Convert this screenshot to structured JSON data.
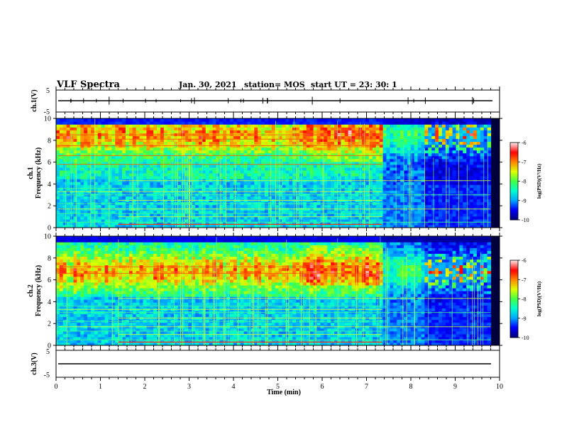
{
  "header": {
    "title": "VLF Spectra",
    "date": "Jan. 30, 2021",
    "station": "station= MOS",
    "start": "start  UT =   23: 30: 1"
  },
  "chart_data": {
    "type": "heatmap",
    "x_axis": {
      "label": "Time  (min)",
      "range": [
        0,
        10
      ],
      "ticks": [
        "0",
        "1",
        "2",
        "3",
        "4",
        "5",
        "6",
        "7",
        "8",
        "9",
        "10"
      ]
    },
    "panels": [
      {
        "id": "ch1_waveform",
        "type": "line",
        "ylabel": "ch.1(V)",
        "ylim": [
          -5,
          5
        ],
        "yticks": [
          "5",
          "-5"
        ],
        "baseline_value": 0
      },
      {
        "id": "ch1_spectrogram",
        "type": "heatmap",
        "ylabel_channel": "ch.1",
        "ylabel": "Frequency  (kHz)",
        "ylim": [
          0,
          10
        ],
        "yticks": [
          "0",
          "2",
          "4",
          "6",
          "8",
          "10"
        ],
        "emission_band_khz": [
          6,
          9
        ],
        "emission_peak_khz": 8.5,
        "horizontal_lines_khz": [
          0.5,
          1.0,
          1.3,
          1.7,
          2.2,
          2.5,
          3.0,
          3.3,
          3.6,
          4.3,
          5.8,
          6.6,
          7.5,
          8.1,
          8.5
        ],
        "change_points_min": [
          1.4,
          7.35,
          8.25
        ]
      },
      {
        "id": "ch2_spectrogram",
        "type": "heatmap",
        "ylabel_channel": "ch.2",
        "ylabel": "Frequency  (kHz)",
        "ylim": [
          0,
          10
        ],
        "yticks": [
          "0",
          "2",
          "4",
          "6",
          "8",
          "10"
        ],
        "emission_band_khz": [
          5.5,
          8.5
        ],
        "emission_peak_khz": 6.8,
        "horizontal_lines_khz": [
          0.5,
          1.0,
          1.3,
          1.7,
          2.2,
          2.5,
          3.0,
          3.3,
          3.6,
          4.3,
          6.6,
          7.2
        ],
        "change_points_min": [
          1.4,
          7.35,
          8.25
        ]
      },
      {
        "id": "ch3_waveform",
        "type": "line",
        "ylabel": "ch.3(V)",
        "ylim": [
          -5,
          5
        ],
        "yticks": [
          "5",
          "-5"
        ],
        "baseline_value": 0
      }
    ],
    "colorbar": {
      "title": "log(PSD)(V²/Hz)",
      "range": [
        -10,
        -6
      ],
      "ticks": [
        "-6",
        "-7",
        "-8",
        "-9",
        "-10"
      ],
      "colors": [
        "#00007f",
        "#0000ff",
        "#00aaff",
        "#00ffcc",
        "#44ff44",
        "#ddff00",
        "#ff8800",
        "#ff0000",
        "#ffdddd"
      ]
    }
  }
}
